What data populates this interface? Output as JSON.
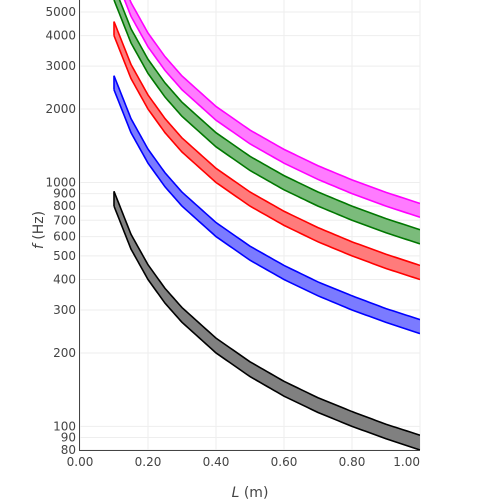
{
  "chart_data": {
    "type": "area",
    "title": "",
    "xlabel": {
      "main": "L",
      "unit": " (m)"
    },
    "ylabel": {
      "main": "f",
      "unit": " (Hz)"
    },
    "xlim": [
      0,
      1
    ],
    "ylim": [
      80,
      5600
    ],
    "yscale": "log",
    "grid": true,
    "legend": "none",
    "x_ticks": [
      {
        "value": 0.0,
        "label": "0.00"
      },
      {
        "value": 0.2,
        "label": "0.20"
      },
      {
        "value": 0.4,
        "label": "0.40"
      },
      {
        "value": 0.6,
        "label": "0.60"
      },
      {
        "value": 0.8,
        "label": "0.80"
      },
      {
        "value": 1.0,
        "label": "1.00"
      }
    ],
    "y_ticks": [
      {
        "value": 80,
        "label": "80"
      },
      {
        "value": 90,
        "label": "90"
      },
      {
        "value": 100,
        "label": "100"
      },
      {
        "value": 200,
        "label": "200"
      },
      {
        "value": 300,
        "label": "300"
      },
      {
        "value": 400,
        "label": "400"
      },
      {
        "value": 500,
        "label": "500"
      },
      {
        "value": 600,
        "label": "600"
      },
      {
        "value": 700,
        "label": "700"
      },
      {
        "value": 800,
        "label": "800"
      },
      {
        "value": 900,
        "label": "900"
      },
      {
        "value": 1000,
        "label": "1000"
      },
      {
        "value": 2000,
        "label": "2000"
      },
      {
        "value": 3000,
        "label": "3000"
      },
      {
        "value": 4000,
        "label": "4000"
      },
      {
        "value": 5000,
        "label": "5000"
      }
    ],
    "x": [
      0.1,
      0.15,
      0.2,
      0.25,
      0.3,
      0.4,
      0.5,
      0.6,
      0.7,
      0.8,
      0.9,
      1.0
    ],
    "series": [
      {
        "color": "#000000",
        "fill": "#808080",
        "lower": [
          800,
          533,
          400,
          320,
          267,
          200,
          160,
          133,
          114,
          100,
          89,
          80
        ],
        "upper": [
          920,
          613,
          460,
          368,
          307,
          230,
          184,
          153,
          131,
          115,
          102,
          92
        ]
      },
      {
        "color": "#0000ff",
        "fill": "#7b7bff",
        "lower": [
          2400,
          1600,
          1200,
          960,
          800,
          600,
          480,
          400,
          343,
          300,
          267,
          240
        ],
        "upper": [
          2740,
          1827,
          1370,
          1096,
          913,
          685,
          548,
          457,
          391,
          343,
          304,
          274
        ]
      },
      {
        "color": "#ff0000",
        "fill": "#ff7b7b",
        "lower": [
          4000,
          2667,
          2000,
          1600,
          1333,
          1000,
          800,
          667,
          571,
          500,
          444,
          400
        ],
        "upper": [
          4570,
          3047,
          2285,
          1828,
          1523,
          1143,
          914,
          762,
          653,
          571,
          508,
          457
        ]
      },
      {
        "color": "#007700",
        "fill": "#7bbb7b",
        "lower": [
          5600,
          3733,
          2800,
          2240,
          1867,
          1400,
          1120,
          933,
          800,
          700,
          622,
          560
        ],
        "upper": [
          6400,
          4267,
          3200,
          2560,
          2133,
          1600,
          1280,
          1067,
          914,
          800,
          711,
          640
        ]
      },
      {
        "color": "#ff00ff",
        "fill": "#ff7bff",
        "lower": [
          7200,
          4800,
          3600,
          2880,
          2400,
          1800,
          1440,
          1200,
          1029,
          900,
          800,
          720
        ],
        "upper": [
          8200,
          5467,
          4100,
          3280,
          2733,
          2050,
          1640,
          1367,
          1171,
          1025,
          911,
          820
        ]
      }
    ]
  }
}
